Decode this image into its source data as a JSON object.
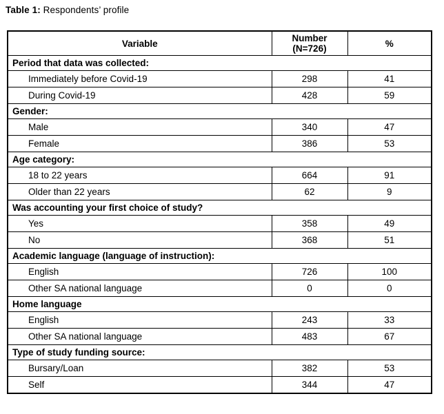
{
  "title": {
    "label": "Table 1:",
    "text": " Respondents’ profile"
  },
  "table": {
    "columns": {
      "variable": "Variable",
      "number_line1": "Number",
      "number_line2": "(N=726)",
      "percent": "%"
    },
    "sections": [
      {
        "title": "Period that data was collected:",
        "rows": [
          {
            "label": "Immediately before Covid-19",
            "number": 298,
            "percent": 41
          },
          {
            "label": "During Covid-19",
            "number": 428,
            "percent": 59
          }
        ]
      },
      {
        "title": "Gender:",
        "rows": [
          {
            "label": "Male",
            "number": 340,
            "percent": 47
          },
          {
            "label": "Female",
            "number": 386,
            "percent": 53
          }
        ]
      },
      {
        "title": "Age category:",
        "rows": [
          {
            "label": "18 to 22 years",
            "number": 664,
            "percent": 91
          },
          {
            "label": "Older than 22 years",
            "number": 62,
            "percent": 9
          }
        ]
      },
      {
        "title": "Was accounting your first choice of study?",
        "rows": [
          {
            "label": "Yes",
            "number": 358,
            "percent": 49
          },
          {
            "label": "No",
            "number": 368,
            "percent": 51
          }
        ]
      },
      {
        "title": "Academic language (language of instruction):",
        "rows": [
          {
            "label": "English",
            "number": 726,
            "percent": 100
          },
          {
            "label": "Other SA national language",
            "number": 0,
            "percent": 0
          }
        ]
      },
      {
        "title": "Home language",
        "rows": [
          {
            "label": "English",
            "number": 243,
            "percent": 33
          },
          {
            "label": "Other SA national language",
            "number": 483,
            "percent": 67
          }
        ]
      },
      {
        "title": "Type of study funding source:",
        "rows": [
          {
            "label": "Bursary/Loan",
            "number": 382,
            "percent": 53
          },
          {
            "label": "Self",
            "number": 344,
            "percent": 47
          }
        ]
      }
    ]
  },
  "colors": {
    "background": "#ffffff",
    "text": "#000000",
    "border": "#000000"
  }
}
